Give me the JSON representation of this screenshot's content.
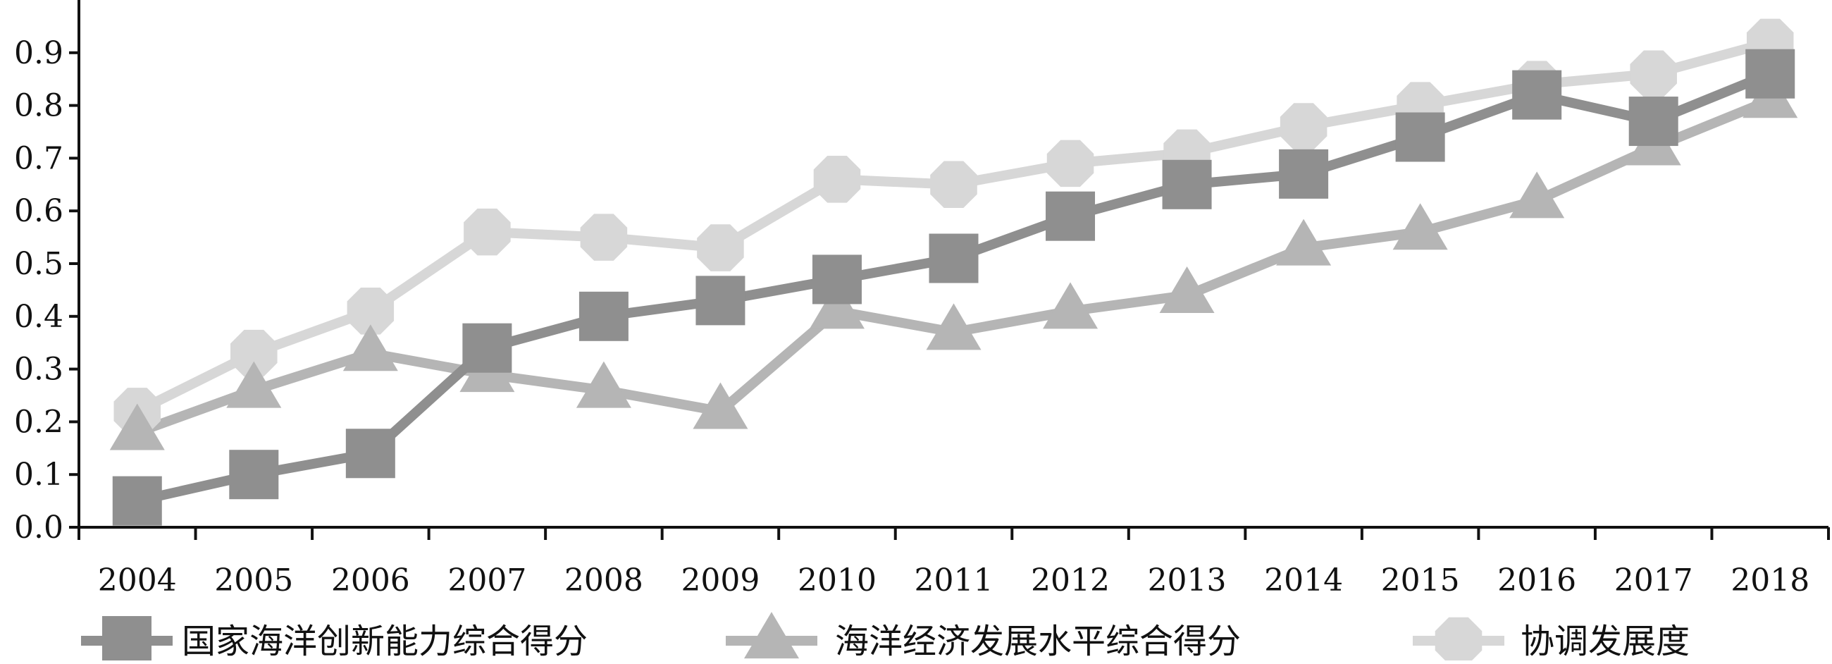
{
  "chart_data": {
    "type": "line",
    "title": "",
    "xlabel": "",
    "ylabel": "",
    "categories": [
      "2004",
      "2005",
      "2006",
      "2007",
      "2008",
      "2009",
      "2010",
      "2011",
      "2012",
      "2013",
      "2014",
      "2015",
      "2016",
      "2017",
      "2018"
    ],
    "ylim": [
      0,
      1.0
    ],
    "yticks": [
      "0.0",
      "0.1",
      "0.2",
      "0.3",
      "0.4",
      "0.5",
      "0.6",
      "0.7",
      "0.8",
      "0.9"
    ],
    "grid": false,
    "legend_position": "bottom",
    "series": [
      {
        "name": "国家海洋创新能力综合得分",
        "marker": "square",
        "color": "#8f8f8f",
        "values": [
          0.05,
          0.1,
          0.14,
          0.34,
          0.4,
          0.43,
          0.47,
          0.51,
          0.59,
          0.65,
          0.67,
          0.74,
          0.82,
          0.77,
          0.86
        ]
      },
      {
        "name": "海洋经济发展水平综合得分",
        "marker": "triangle",
        "color": "#b5b5b5",
        "values": [
          0.18,
          0.26,
          0.33,
          0.29,
          0.26,
          0.22,
          0.41,
          0.37,
          0.41,
          0.44,
          0.53,
          0.56,
          0.62,
          0.72,
          0.81
        ]
      },
      {
        "name": "协调发展度",
        "marker": "circle",
        "color": "#d7d7d7",
        "values": [
          0.22,
          0.33,
          0.41,
          0.56,
          0.55,
          0.53,
          0.66,
          0.65,
          0.69,
          0.71,
          0.76,
          0.8,
          0.84,
          0.86,
          0.92
        ]
      }
    ]
  }
}
